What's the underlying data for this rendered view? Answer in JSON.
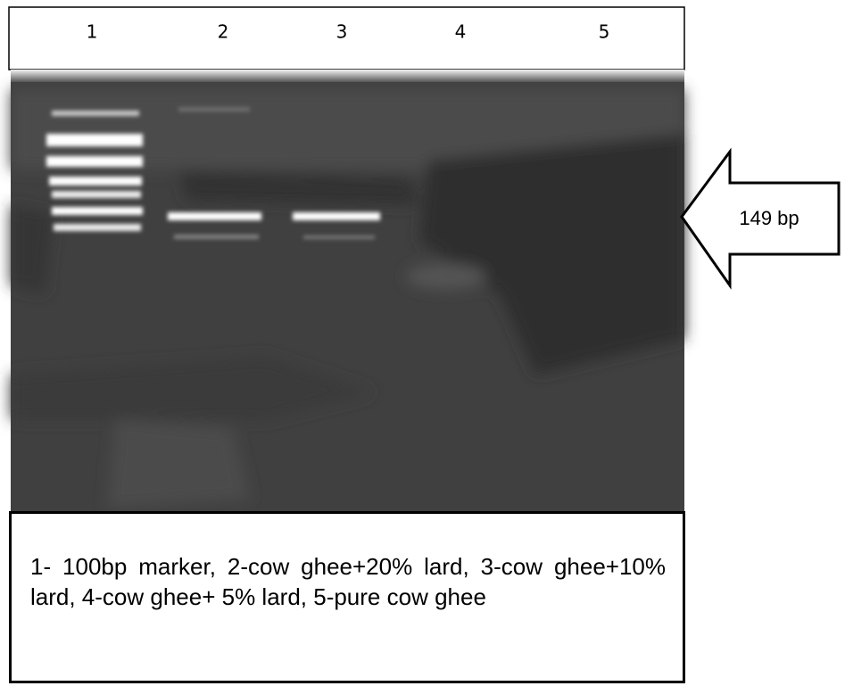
{
  "lanes": [
    "1",
    "2",
    "3",
    "4",
    "5"
  ],
  "marker_label": "149 bp",
  "caption": "1- 100bp marker, 2-cow ghee+20% lard, 3-cow ghee+10% lard, 4-cow ghee+ 5% lard, 5-pure cow ghee"
}
